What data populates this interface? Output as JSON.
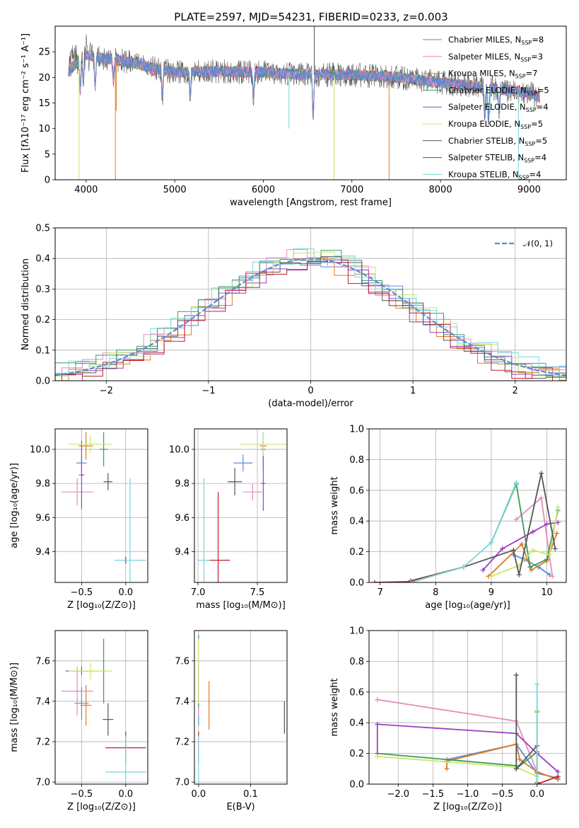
{
  "figure": {
    "title": "PLATE=2597, MJD=54231, FIBERID=0233, z=0.003"
  },
  "colors": {
    "chabrier_miles": "#5b8bd6",
    "salpeter_miles": "#e38cbf",
    "kroupa_miles": "#e07b28",
    "chabrier_elodie": "#3a9a5a",
    "salpeter_elodie": "#9b3fbf",
    "kroupa_elodie": "#c8e86a",
    "chabrier_stelib": "#555555",
    "salpeter_stelib": "#c0202a",
    "kroupa_stelib": "#7ad6d9"
  },
  "chart_data": [
    {
      "id": "spectrum",
      "type": "line",
      "title": "PLATE=2597, MJD=54231, FIBERID=0233, z=0.003",
      "xlabel": "wavelength [Angstrom, rest frame]",
      "ylabel": "Flux [fλ10⁻¹⁷ erg cm⁻² s⁻¹ A⁻¹]",
      "xlim": [
        3650,
        9420
      ],
      "ylim": [
        0,
        30
      ],
      "xticks": [
        4000,
        5000,
        6000,
        7000,
        8000,
        9000
      ],
      "yticks": [
        0,
        5,
        10,
        15,
        20,
        25
      ],
      "grid": false,
      "legend_position": "top-right",
      "series": [
        {
          "name": "Chabrier MILES, N",
          "sub": "SSP",
          "suffix": "=8",
          "color_key": "chabrier_miles"
        },
        {
          "name": "Salpeter MILES, N",
          "sub": "SSP",
          "suffix": "=3",
          "color_key": "salpeter_miles"
        },
        {
          "name": "Kroupa MILES, N",
          "sub": "SSP",
          "suffix": "=7",
          "color_key": "kroupa_miles"
        },
        {
          "name": "Chabrier ELODIE, N",
          "sub": "SSP",
          "suffix": "=5",
          "color_key": "chabrier_elodie"
        },
        {
          "name": "Salpeter ELODIE, N",
          "sub": "SSP",
          "suffix": "=4",
          "color_key": "salpeter_elodie"
        },
        {
          "name": "Kroupa ELODIE, N",
          "sub": "SSP",
          "suffix": "=5",
          "color_key": "kroupa_elodie"
        },
        {
          "name": "Chabrier STELIB, N",
          "sub": "SSP",
          "suffix": "=5",
          "color_key": "chabrier_stelib"
        },
        {
          "name": "Salpeter STELIB, N",
          "sub": "SSP",
          "suffix": "=4",
          "color_key": "salpeter_stelib"
        },
        {
          "name": "Kroupa STELIB, N",
          "sub": "SSP",
          "suffix": "=4",
          "color_key": "kroupa_stelib"
        }
      ],
      "continuum": [
        [
          3800,
          21
        ],
        [
          3900,
          23
        ],
        [
          4000,
          24.5
        ],
        [
          4100,
          24
        ],
        [
          4300,
          23.5
        ],
        [
          4500,
          23
        ],
        [
          4700,
          22
        ],
        [
          5000,
          21
        ],
        [
          5500,
          21.2
        ],
        [
          6000,
          21
        ],
        [
          6500,
          20.5
        ],
        [
          7000,
          20.5
        ],
        [
          7500,
          20
        ],
        [
          8000,
          19
        ],
        [
          8500,
          18
        ],
        [
          9000,
          17
        ],
        [
          9120,
          16
        ]
      ],
      "absorption_dips": [
        [
          3934,
          6
        ],
        [
          3968,
          5
        ],
        [
          4102,
          6
        ],
        [
          4308,
          4
        ],
        [
          4861,
          5
        ],
        [
          5175,
          5
        ],
        [
          5890,
          5
        ],
        [
          6563,
          8
        ],
        [
          8498,
          5
        ],
        [
          8542,
          6
        ],
        [
          8662,
          5
        ]
      ],
      "spikes": [
        {
          "x": 3920,
          "y": 0,
          "color_key": "kroupa_elodie"
        },
        {
          "x": 4330,
          "y": 0,
          "color_key": "kroupa_miles"
        },
        {
          "x": 4340,
          "y": 13.5,
          "color_key": "kroupa_miles"
        },
        {
          "x": 6290,
          "y": 10,
          "color_key": "kroupa_stelib"
        },
        {
          "x": 6575,
          "y": 30,
          "color_key": "chabrier_stelib"
        },
        {
          "x": 6800,
          "y": 0,
          "color_key": "kroupa_elodie"
        },
        {
          "x": 7420,
          "y": 0,
          "color_key": "kroupa_miles"
        },
        {
          "x": 8520,
          "y": 14,
          "color_key": "kroupa_stelib"
        },
        {
          "x": 8560,
          "y": 13,
          "color_key": "kroupa_stelib"
        },
        {
          "x": 8880,
          "y": 0,
          "color_key": "kroupa_stelib"
        }
      ]
    },
    {
      "id": "residuals",
      "type": "line",
      "xlabel": "(data-model)/error",
      "ylabel": "Normed distribution",
      "xlim": [
        -2.5,
        2.5
      ],
      "ylim": [
        0,
        0.5
      ],
      "xticks": [
        -2,
        -1,
        0,
        1,
        2
      ],
      "yticks": [
        0.0,
        0.1,
        0.2,
        0.3,
        0.4,
        0.5
      ],
      "grid": true,
      "legend_position": "top-right",
      "legend_label": "𝒩(0, 1)",
      "gaussian": {
        "mu": 0,
        "sigma": 1,
        "color_key": "chabrier_miles"
      },
      "histograms": [
        {
          "color_key": "chabrier_miles",
          "offset": 0.003
        },
        {
          "color_key": "salpeter_miles",
          "offset": 0.01
        },
        {
          "color_key": "kroupa_miles",
          "offset": -0.008
        },
        {
          "color_key": "chabrier_elodie",
          "offset": 0.012
        },
        {
          "color_key": "salpeter_elodie",
          "offset": -0.012
        },
        {
          "color_key": "kroupa_elodie",
          "offset": 0.006
        },
        {
          "color_key": "chabrier_stelib",
          "offset": -0.004
        },
        {
          "color_key": "salpeter_stelib",
          "offset": -0.015
        },
        {
          "color_key": "kroupa_stelib",
          "offset": 0.015
        }
      ]
    },
    {
      "id": "age-vs-z",
      "type": "scatter",
      "xlabel": "Z [log₁₀(Z/Z⊙)]",
      "ylabel": "age  [log₁₀(age/yr)]",
      "xlim": [
        -0.8,
        0.25
      ],
      "ylim": [
        9.22,
        10.12
      ],
      "xticks": [
        -0.5,
        0.0
      ],
      "yticks": [
        9.4,
        9.6,
        9.8,
        10.0
      ],
      "grid": true,
      "points": [
        {
          "x": -0.5,
          "y": 9.92,
          "ex": 0.06,
          "ey": 0.05,
          "color_key": "chabrier_miles"
        },
        {
          "x": -0.55,
          "y": 9.75,
          "ex": 0.18,
          "ey": 0.08,
          "color_key": "salpeter_miles"
        },
        {
          "x": -0.45,
          "y": 10.02,
          "ex": 0.08,
          "ey": 0.08,
          "color_key": "kroupa_miles"
        },
        {
          "x": -0.25,
          "y": 10.0,
          "ex": 0.05,
          "ey": 0.1,
          "color_key": "chabrier_elodie"
        },
        {
          "x": -0.5,
          "y": 9.85,
          "ex": 0.03,
          "ey": 0.2,
          "color_key": "salpeter_elodie"
        },
        {
          "x": -0.4,
          "y": 10.03,
          "ex": 0.25,
          "ey": 0.05,
          "color_key": "kroupa_elodie"
        },
        {
          "x": -0.2,
          "y": 9.81,
          "ex": 0.05,
          "ey": 0.05,
          "color_key": "chabrier_stelib"
        },
        {
          "x": 0.0,
          "y": 9.35,
          "ex": 0.01,
          "ey": 0.02,
          "color_key": "salpeter_stelib"
        },
        {
          "x": 0.05,
          "y": 9.35,
          "ex": 0.18,
          "ey": 0.48,
          "color_key": "kroupa_stelib"
        }
      ]
    },
    {
      "id": "age-vs-mass",
      "type": "scatter",
      "xlabel": "mass [log₁₀(M/M⊙)]",
      "ylabel": "",
      "xlim": [
        6.97,
        7.75
      ],
      "ylim": [
        9.22,
        10.12
      ],
      "xticks": [
        7.0,
        7.5
      ],
      "yticks": [
        9.4,
        9.6,
        9.8,
        10.0
      ],
      "grid": true,
      "points": [
        {
          "x": 7.38,
          "y": 9.92,
          "ex": 0.08,
          "ey": 0.05,
          "color_key": "chabrier_miles"
        },
        {
          "x": 7.46,
          "y": 9.75,
          "ex": 0.08,
          "ey": 0.05,
          "color_key": "salpeter_miles"
        },
        {
          "x": 7.55,
          "y": 10.02,
          "ex": 0.03,
          "ey": 0.08,
          "color_key": "kroupa_miles"
        },
        {
          "x": 7.55,
          "y": 10.0,
          "ex": 0.02,
          "ey": 0.1,
          "color_key": "chabrier_elodie"
        },
        {
          "x": 7.55,
          "y": 9.8,
          "ex": 0.02,
          "ey": 0.16,
          "color_key": "salpeter_elodie"
        },
        {
          "x": 7.55,
          "y": 10.03,
          "ex": 0.2,
          "ey": 0.07,
          "color_key": "kroupa_elodie"
        },
        {
          "x": 7.31,
          "y": 9.81,
          "ex": 0.06,
          "ey": 0.08,
          "color_key": "chabrier_stelib"
        },
        {
          "x": 7.17,
          "y": 9.35,
          "ex": 0.1,
          "ey": 0.4,
          "color_key": "salpeter_stelib"
        },
        {
          "x": 7.05,
          "y": 9.35,
          "ex": 0.05,
          "ey": 0.48,
          "color_key": "kroupa_stelib"
        }
      ]
    },
    {
      "id": "weight-vs-age",
      "type": "line",
      "xlabel": "age  [log₁₀(age/yr)]",
      "ylabel": "mass weight",
      "xlim": [
        6.8,
        10.35
      ],
      "ylim": [
        0,
        1.0
      ],
      "xticks": [
        7,
        8,
        9,
        10
      ],
      "yticks": [
        0.0,
        0.2,
        0.4,
        0.6,
        0.8,
        1.0
      ],
      "grid": true,
      "series": [
        {
          "color_key": "chabrier_miles",
          "x": [
            9.4,
            9.6,
            9.85,
            10.05
          ],
          "y": [
            0.18,
            0.15,
            0.1,
            0.05
          ]
        },
        {
          "color_key": "salpeter_miles",
          "x": [
            9.45,
            9.9,
            10.1
          ],
          "y": [
            0.41,
            0.55,
            0.04
          ]
        },
        {
          "color_key": "kroupa_miles",
          "x": [
            8.95,
            9.55,
            9.72,
            10.0,
            10.18
          ],
          "y": [
            0.04,
            0.25,
            0.08,
            0.14,
            0.32
          ]
        },
        {
          "color_key": "chabrier_elodie",
          "x": [
            9.0,
            9.45,
            9.7,
            10.0,
            10.2
          ],
          "y": [
            0.26,
            0.64,
            0.1,
            0.15,
            0.47
          ]
        },
        {
          "color_key": "salpeter_elodie",
          "x": [
            8.85,
            9.2,
            9.75,
            10.0,
            10.2
          ],
          "y": [
            0.08,
            0.22,
            0.33,
            0.38,
            0.39
          ]
        },
        {
          "color_key": "kroupa_elodie",
          "x": [
            9.0,
            9.5,
            9.75,
            10.05,
            10.2
          ],
          "y": [
            0.04,
            0.11,
            0.21,
            0.18,
            0.49
          ]
        },
        {
          "color_key": "chabrier_stelib",
          "x": [
            7.55,
            8.5,
            9.4,
            9.5,
            9.9,
            10.15
          ],
          "y": [
            0.01,
            0.1,
            0.21,
            0.05,
            0.71,
            0.22
          ]
        },
        {
          "color_key": "salpeter_stelib",
          "x": [
            6.9,
            7.55,
            8.5
          ],
          "y": [
            0.0,
            0.005,
            0.1
          ]
        },
        {
          "color_key": "kroupa_stelib",
          "x": [
            7.55,
            8.5,
            9.0,
            9.45
          ],
          "y": [
            0.0,
            0.1,
            0.26,
            0.65
          ]
        }
      ]
    },
    {
      "id": "mass-vs-z",
      "type": "scatter",
      "xlabel": "Z [log₁₀(Z/Z⊙)]",
      "ylabel": "mass [log₁₀(M/M⊙)]",
      "xlim": [
        -0.8,
        0.25
      ],
      "ylim": [
        6.99,
        7.75
      ],
      "xticks": [
        -0.5,
        0.0
      ],
      "yticks": [
        7.0,
        7.2,
        7.4,
        7.6
      ],
      "grid": true,
      "points": [
        {
          "x": -0.5,
          "y": 7.39,
          "ex": 0.08,
          "ey": 0.08,
          "color_key": "chabrier_miles"
        },
        {
          "x": -0.55,
          "y": 7.45,
          "ex": 0.18,
          "ey": 0.12,
          "color_key": "salpeter_miles"
        },
        {
          "x": -0.45,
          "y": 7.38,
          "ex": 0.06,
          "ey": 0.1,
          "color_key": "kroupa_miles"
        },
        {
          "x": -0.25,
          "y": 7.55,
          "ex": 0.05,
          "ey": 0.16,
          "color_key": "chabrier_elodie"
        },
        {
          "x": -0.5,
          "y": 7.55,
          "ex": 0.18,
          "ey": 0.02,
          "color_key": "salpeter_elodie"
        },
        {
          "x": -0.4,
          "y": 7.55,
          "ex": 0.25,
          "ey": 0.04,
          "color_key": "kroupa_elodie"
        },
        {
          "x": -0.2,
          "y": 7.31,
          "ex": 0.06,
          "ey": 0.08,
          "color_key": "chabrier_stelib"
        },
        {
          "x": 0.0,
          "y": 7.17,
          "ex": 0.23,
          "ey": 0.08,
          "color_key": "salpeter_stelib"
        },
        {
          "x": 0.0,
          "y": 7.05,
          "ex": 0.23,
          "ey": 0.18,
          "color_key": "kroupa_stelib"
        }
      ]
    },
    {
      "id": "mass-vs-ebv",
      "type": "scatter",
      "xlabel": "E(B-V)",
      "ylabel": "",
      "xlim": [
        -0.008,
        0.17
      ],
      "ylim": [
        6.99,
        7.75
      ],
      "xticks": [
        0.0,
        0.1
      ],
      "yticks": [
        7.0,
        7.2,
        7.4,
        7.6
      ],
      "grid": true,
      "points": [
        {
          "x": 0.0,
          "y": 7.38,
          "ex": 0.0,
          "ey": 0.1,
          "color_key": "chabrier_miles"
        },
        {
          "x": 0.0,
          "y": 7.45,
          "ex": 0.0,
          "ey": 0.12,
          "color_key": "salpeter_miles"
        },
        {
          "x": 0.02,
          "y": 7.38,
          "ex": 0.0,
          "ey": 0.12,
          "color_key": "kroupa_miles"
        },
        {
          "x": 0.0,
          "y": 7.55,
          "ex": 0.0,
          "ey": 0.18,
          "color_key": "chabrier_elodie"
        },
        {
          "x": 0.0,
          "y": 7.55,
          "ex": 0.0,
          "ey": 0.02,
          "color_key": "salpeter_elodie"
        },
        {
          "x": 0.0,
          "y": 7.55,
          "ex": 0.0,
          "ey": 0.16,
          "color_key": "kroupa_elodie"
        },
        {
          "x": 0.165,
          "y": 7.32,
          "ex": 0.0,
          "ey": 0.08,
          "color_key": "chabrier_stelib"
        },
        {
          "x": 0.0,
          "y": 7.17,
          "ex": 0.0,
          "ey": 0.08,
          "color_key": "salpeter_stelib"
        },
        {
          "x": 0.0,
          "y": 7.05,
          "ex": 0.0,
          "ey": 0.18,
          "color_key": "kroupa_stelib"
        }
      ]
    },
    {
      "id": "weight-vs-z",
      "type": "line",
      "xlabel": "Z [log₁₀(Z/Z⊙)]",
      "ylabel": "mass weight",
      "xlim": [
        -2.42,
        0.42
      ],
      "ylim": [
        0,
        1.0
      ],
      "xticks": [
        -2.0,
        -1.5,
        -1.0,
        -0.5,
        0.0
      ],
      "yticks": [
        0.0,
        0.2,
        0.4,
        0.6,
        0.8,
        1.0
      ],
      "grid": true,
      "series": [
        {
          "color_key": "chabrier_miles",
          "x": [
            -1.3,
            -0.3,
            0.0,
            0.3
          ],
          "y": [
            0.16,
            0.26,
            0.07,
            0.04
          ]
        },
        {
          "color_key": "salpeter_miles",
          "x": [
            -2.3,
            -0.3,
            0.0,
            0.3
          ],
          "y": [
            0.55,
            0.41,
            0.08,
            0.03
          ]
        },
        {
          "color_key": "kroupa_miles",
          "x": [
            -1.3,
            -1.3,
            -0.3,
            -0.25,
            0.0,
            0.3
          ],
          "y": [
            0.1,
            0.15,
            0.26,
            0.16,
            0.08,
            0.03
          ]
        },
        {
          "color_key": "chabrier_elodie",
          "x": [
            -2.3,
            -0.3,
            -0.3,
            0.0,
            0.0
          ],
          "y": [
            0.2,
            0.12,
            0.1,
            0.21,
            0.47
          ]
        },
        {
          "color_key": "salpeter_elodie",
          "x": [
            -2.3,
            -2.3,
            -0.3,
            0.0,
            0.3
          ],
          "y": [
            0.2,
            0.39,
            0.33,
            0.2,
            0.08
          ]
        },
        {
          "color_key": "kroupa_elodie",
          "x": [
            -2.3,
            -0.3,
            0.0,
            0.0
          ],
          "y": [
            0.18,
            0.11,
            0.05,
            0.48
          ]
        },
        {
          "color_key": "chabrier_stelib",
          "x": [
            -0.3,
            -0.3,
            0.0,
            0.0
          ],
          "y": [
            0.71,
            0.1,
            0.25,
            0.01
          ]
        },
        {
          "color_key": "salpeter_stelib",
          "x": [
            0.0,
            0.3
          ],
          "y": [
            0.0,
            0.05
          ]
        },
        {
          "color_key": "kroupa_stelib",
          "x": [
            0.0,
            0.0
          ],
          "y": [
            0.0,
            0.65
          ]
        }
      ]
    }
  ]
}
